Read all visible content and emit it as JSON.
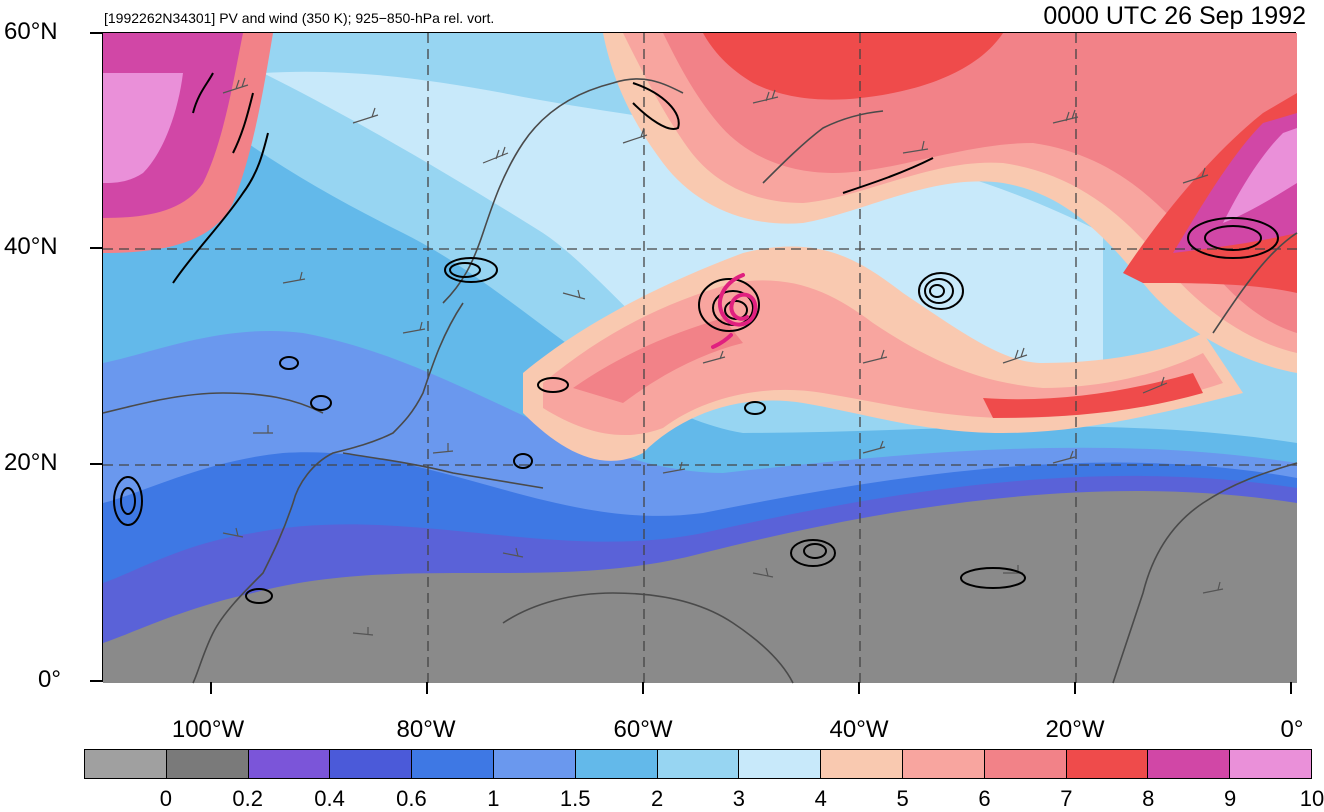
{
  "subtitle": "[1992262N34301] PV and wind (350 K); 925−850-hPa rel. vort.",
  "datetime": "0000 UTC 26 Sep 1992",
  "lat_labels": [
    "60°N",
    "40°N",
    "20°N",
    "0°"
  ],
  "lon_labels": [
    "100°W",
    "80°W",
    "60°W",
    "40°W",
    "20°W",
    "0°"
  ],
  "colorbar": {
    "labels": [
      "0",
      "0.2",
      "0.4",
      "0.6",
      "1",
      "1.5",
      "2",
      "3",
      "4",
      "5",
      "6",
      "7",
      "8",
      "9",
      "10"
    ],
    "colors": [
      "#a0a0a0",
      "#7a7a7a",
      "#7b55d9",
      "#4b5ad9",
      "#3e78e4",
      "#6a98ee",
      "#63b9ea",
      "#97d5f2",
      "#c8e9fa",
      "#f9c9b0",
      "#f8a59f",
      "#f28288",
      "#ef4b4b",
      "#d147a6",
      "#ea90d9"
    ]
  },
  "colors": {
    "coast": "#4a4a4a",
    "grid": "#444444",
    "contour": "#000000",
    "storm_track": "#e0207f"
  }
}
